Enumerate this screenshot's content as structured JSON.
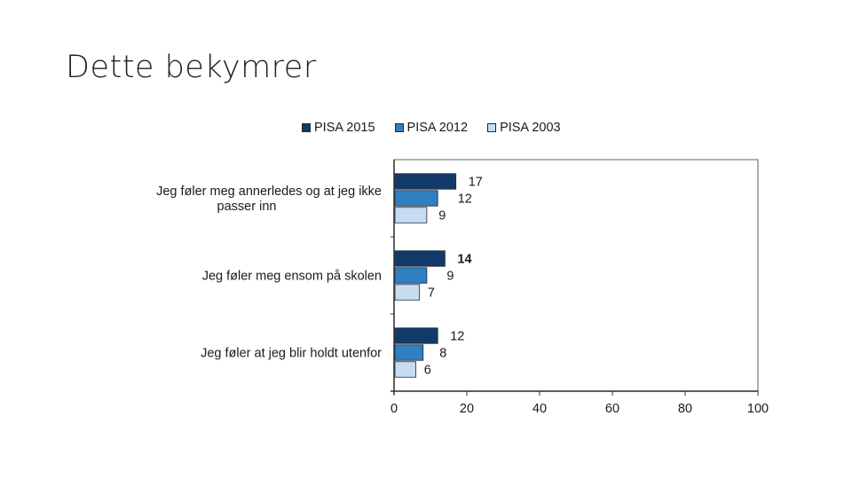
{
  "slide": {
    "title": "Dette bekymrer"
  },
  "chart_data": {
    "type": "bar",
    "orientation": "horizontal",
    "categories": [
      [
        "Jeg føler meg annerledes og at jeg ikke",
        "passer inn"
      ],
      [
        "Jeg føler meg ensom på skolen"
      ],
      [
        "Jeg føler at jeg blir holdt utenfor"
      ]
    ],
    "series": [
      {
        "name": "PISA 2015",
        "values": [
          17,
          14,
          12
        ],
        "color": "#123a68"
      },
      {
        "name": "PISA 2012",
        "values": [
          12,
          9,
          8
        ],
        "color": "#2f7fc1"
      },
      {
        "name": "PISA 2003",
        "values": [
          9,
          7,
          6
        ],
        "color": "#c7dcf1"
      }
    ],
    "xlim": [
      0,
      100
    ],
    "xticks": [
      0,
      20,
      40,
      60,
      80,
      100
    ],
    "bold_labels": [
      [
        false,
        false,
        false
      ],
      [
        true,
        false,
        false
      ],
      [
        false,
        false,
        false
      ]
    ],
    "legend_position": "top",
    "grid": false
  }
}
